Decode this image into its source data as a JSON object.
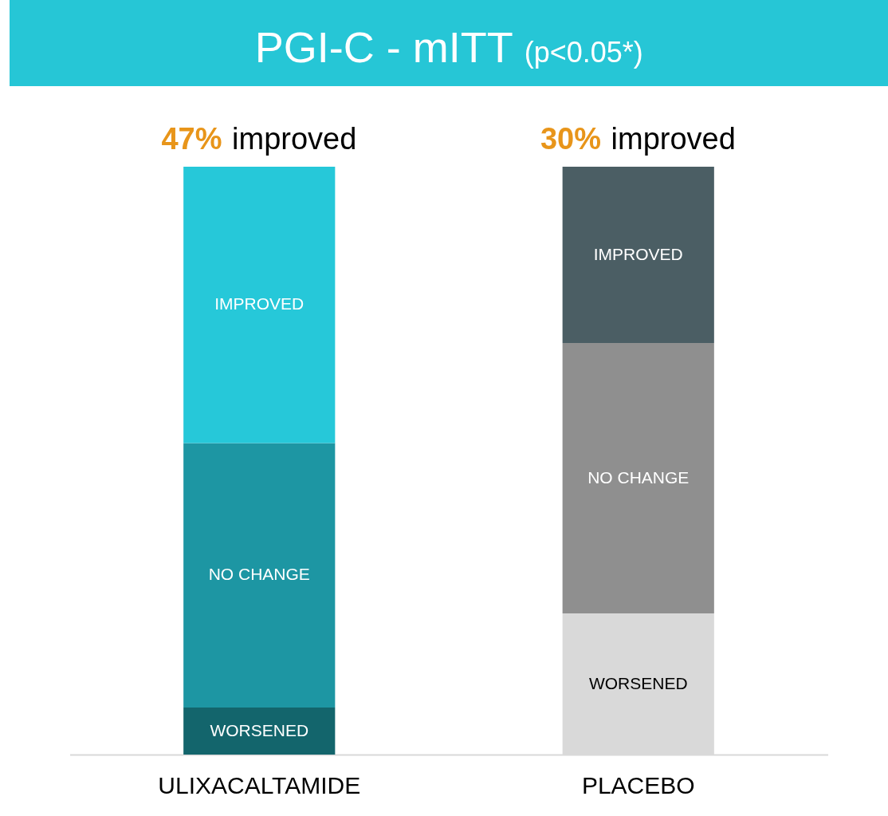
{
  "chart_data": {
    "type": "bar",
    "title": "PGI-C - mITT",
    "subtitle": "(p<0.05*)",
    "categories": [
      "ULIXACALTAMIDE",
      "PLACEBO"
    ],
    "stacked": true,
    "ylim": [
      0,
      100
    ],
    "tick_labels": "x",
    "series": [
      {
        "name": "WORSENED",
        "colors": [
          "#13656c",
          "#d9d9d9"
        ],
        "values": [
          8,
          24
        ]
      },
      {
        "name": "NO CHANGE",
        "colors": [
          "#1d96a3",
          "#8f8f8f"
        ],
        "values": [
          45,
          46
        ]
      },
      {
        "name": "IMPROVED",
        "colors": [
          "#26c8d9",
          "#4b5e64"
        ],
        "values": [
          47,
          30
        ],
        "value_labels": [
          "47% improved",
          "30% improved"
        ]
      }
    ]
  }
}
